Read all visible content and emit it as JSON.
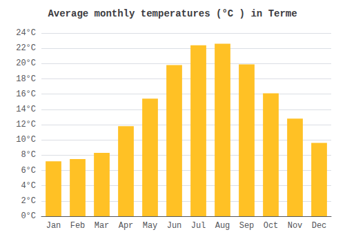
{
  "chart_data": {
    "type": "bar",
    "title": "Average monthly temperatures (°C ) in Terme",
    "categories": [
      "Jan",
      "Feb",
      "Mar",
      "Apr",
      "May",
      "Jun",
      "Jul",
      "Aug",
      "Sep",
      "Oct",
      "Nov",
      "Dec"
    ],
    "values": [
      7.2,
      7.5,
      8.3,
      11.8,
      15.4,
      19.8,
      22.4,
      22.6,
      19.9,
      16.1,
      12.8,
      9.6
    ],
    "color": "#FFC125",
    "ylim": [
      0,
      24
    ],
    "yticks": [
      {
        "value": 0,
        "label": "0°C"
      },
      {
        "value": 2,
        "label": "2°C"
      },
      {
        "value": 4,
        "label": "4°C"
      },
      {
        "value": 6,
        "label": "6°C"
      },
      {
        "value": 8,
        "label": "8°C"
      },
      {
        "value": 10,
        "label": "10°C"
      },
      {
        "value": 12,
        "label": "12°C"
      },
      {
        "value": 14,
        "label": "14°C"
      },
      {
        "value": 16,
        "label": "16°C"
      },
      {
        "value": 18,
        "label": "18°C"
      },
      {
        "value": 20,
        "label": "20°C"
      },
      {
        "value": 22,
        "label": "22°C"
      },
      {
        "value": 24,
        "label": "24°C"
      }
    ],
    "grid": true
  }
}
